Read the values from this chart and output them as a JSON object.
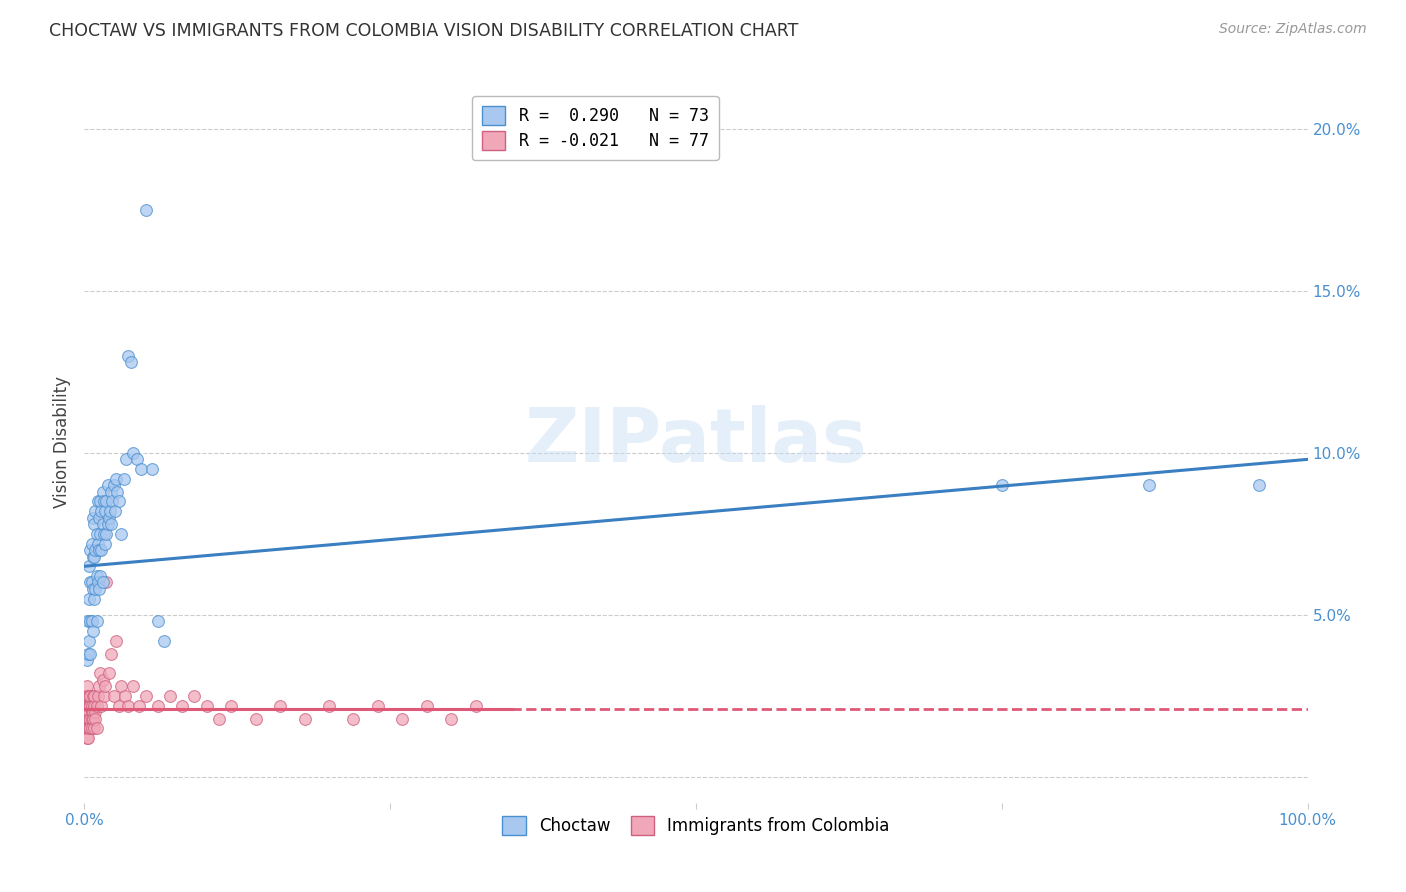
{
  "title": "CHOCTAW VS IMMIGRANTS FROM COLOMBIA VISION DISABILITY CORRELATION CHART",
  "source": "Source: ZipAtlas.com",
  "ylabel": "Vision Disability",
  "xlim": [
    0.0,
    1.0
  ],
  "ylim": [
    -0.008,
    0.215
  ],
  "yticks": [
    0.0,
    0.05,
    0.1,
    0.15,
    0.2
  ],
  "ytick_labels": [
    "",
    "5.0%",
    "10.0%",
    "15.0%",
    "20.0%"
  ],
  "xticks": [
    0.0,
    0.25,
    0.5,
    0.75,
    1.0
  ],
  "xtick_labels": [
    "0.0%",
    "",
    "",
    "",
    "100.0%"
  ],
  "blue_fill": "#a8c8f0",
  "blue_edge": "#4a90d0",
  "blue_line": "#3a7fc1",
  "pink_fill": "#f0a8b8",
  "pink_edge": "#d06080",
  "pink_line": "#e05878",
  "watermark_text": "ZIPatlas",
  "background_color": "#ffffff",
  "grid_color": "#cccccc",
  "title_color": "#333333",
  "source_color": "#999999",
  "axis_label_color": "#444444",
  "tick_label_color": "#4a90d0",
  "legend1_label1": "R =  0.290   N = 73",
  "legend1_label2": "R = -0.021   N = 77",
  "legend2_label1": "Choctaw",
  "legend2_label2": "Immigrants from Colombia",
  "blue_trend": [
    0.0,
    0.065,
    1.0,
    0.098
  ],
  "pink_trend": [
    0.0,
    0.021,
    0.35,
    0.021
  ],
  "choctaw_x": [
    0.002,
    0.003,
    0.003,
    0.004,
    0.004,
    0.004,
    0.005,
    0.005,
    0.005,
    0.005,
    0.006,
    0.006,
    0.006,
    0.007,
    0.007,
    0.007,
    0.007,
    0.008,
    0.008,
    0.008,
    0.009,
    0.009,
    0.009,
    0.01,
    0.01,
    0.01,
    0.011,
    0.011,
    0.011,
    0.012,
    0.012,
    0.012,
    0.013,
    0.013,
    0.013,
    0.014,
    0.014,
    0.015,
    0.015,
    0.015,
    0.016,
    0.016,
    0.017,
    0.017,
    0.018,
    0.018,
    0.019,
    0.019,
    0.02,
    0.021,
    0.022,
    0.022,
    0.023,
    0.024,
    0.025,
    0.026,
    0.027,
    0.028,
    0.03,
    0.032,
    0.034,
    0.036,
    0.038,
    0.04,
    0.043,
    0.046,
    0.05,
    0.055,
    0.06,
    0.065,
    0.75,
    0.87,
    0.96
  ],
  "choctaw_y": [
    0.036,
    0.038,
    0.048,
    0.055,
    0.065,
    0.042,
    0.06,
    0.07,
    0.048,
    0.038,
    0.072,
    0.06,
    0.048,
    0.08,
    0.068,
    0.058,
    0.045,
    0.078,
    0.068,
    0.055,
    0.082,
    0.07,
    0.058,
    0.075,
    0.062,
    0.048,
    0.085,
    0.072,
    0.06,
    0.08,
    0.07,
    0.058,
    0.085,
    0.075,
    0.062,
    0.082,
    0.07,
    0.088,
    0.078,
    0.06,
    0.085,
    0.075,
    0.082,
    0.072,
    0.085,
    0.075,
    0.09,
    0.078,
    0.08,
    0.082,
    0.088,
    0.078,
    0.085,
    0.09,
    0.082,
    0.092,
    0.088,
    0.085,
    0.075,
    0.092,
    0.098,
    0.13,
    0.128,
    0.1,
    0.098,
    0.095,
    0.175,
    0.095,
    0.048,
    0.042,
    0.09,
    0.09,
    0.09
  ],
  "colombia_x": [
    0.001,
    0.001,
    0.001,
    0.001,
    0.001,
    0.002,
    0.002,
    0.002,
    0.002,
    0.002,
    0.002,
    0.002,
    0.003,
    0.003,
    0.003,
    0.003,
    0.003,
    0.003,
    0.004,
    0.004,
    0.004,
    0.004,
    0.004,
    0.005,
    0.005,
    0.005,
    0.005,
    0.006,
    0.006,
    0.006,
    0.006,
    0.007,
    0.007,
    0.007,
    0.008,
    0.008,
    0.008,
    0.009,
    0.009,
    0.01,
    0.01,
    0.011,
    0.012,
    0.013,
    0.014,
    0.015,
    0.016,
    0.017,
    0.018,
    0.02,
    0.022,
    0.024,
    0.026,
    0.028,
    0.03,
    0.033,
    0.036,
    0.04,
    0.045,
    0.05,
    0.06,
    0.07,
    0.08,
    0.09,
    0.1,
    0.11,
    0.12,
    0.14,
    0.16,
    0.18,
    0.2,
    0.22,
    0.24,
    0.26,
    0.28,
    0.3,
    0.32
  ],
  "colombia_y": [
    0.02,
    0.018,
    0.015,
    0.022,
    0.025,
    0.018,
    0.022,
    0.015,
    0.02,
    0.025,
    0.012,
    0.028,
    0.018,
    0.022,
    0.015,
    0.025,
    0.02,
    0.012,
    0.02,
    0.018,
    0.022,
    0.015,
    0.025,
    0.018,
    0.022,
    0.015,
    0.025,
    0.02,
    0.018,
    0.022,
    0.015,
    0.025,
    0.02,
    0.018,
    0.022,
    0.015,
    0.025,
    0.02,
    0.018,
    0.022,
    0.015,
    0.025,
    0.028,
    0.032,
    0.022,
    0.03,
    0.025,
    0.028,
    0.06,
    0.032,
    0.038,
    0.025,
    0.042,
    0.022,
    0.028,
    0.025,
    0.022,
    0.028,
    0.022,
    0.025,
    0.022,
    0.025,
    0.022,
    0.025,
    0.022,
    0.018,
    0.022,
    0.018,
    0.022,
    0.018,
    0.022,
    0.018,
    0.022,
    0.018,
    0.022,
    0.018,
    0.022
  ]
}
